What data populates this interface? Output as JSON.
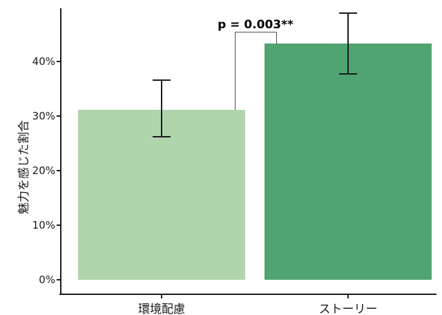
{
  "chart_data": {
    "type": "bar",
    "title": "",
    "xlabel": "",
    "ylabel": "魅力を感じた割合",
    "categories": [
      "環境配慮",
      "ストーリー"
    ],
    "values": [
      31.2,
      43.3
    ],
    "error_low": [
      26.2,
      37.7
    ],
    "error_high": [
      36.6,
      48.9
    ],
    "bar_colors": [
      "#b0d5ad",
      "#4fa471"
    ],
    "ylim": [
      0,
      50
    ],
    "yticks": [
      0,
      10,
      20,
      30,
      40
    ],
    "ytick_labels": [
      "0%",
      "10%",
      "20%",
      "30%",
      "40%"
    ],
    "grid": "off",
    "legend": "none",
    "annotation": {
      "text": "p = 0.003**",
      "connects": [
        "環境配慮",
        "ストーリー"
      ]
    },
    "axis_color": "#1a1a1a",
    "error_bar_color": "#1a1a1a",
    "bracket_color": "#4d4d4d"
  }
}
